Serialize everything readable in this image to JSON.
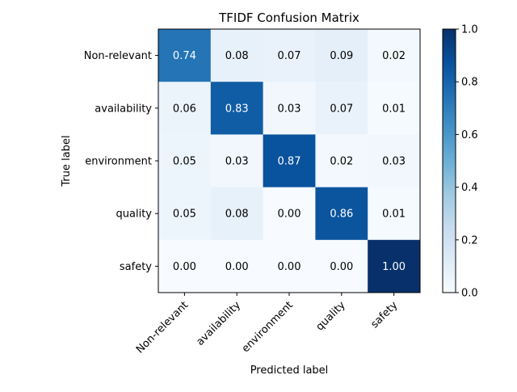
{
  "chart_data": {
    "type": "heatmap",
    "title": "TFIDF Confusion Matrix",
    "xlabel": "Predicted label",
    "ylabel": "True label",
    "x_categories": [
      "Non-relevant",
      "availability",
      "environment",
      "quality",
      "safety"
    ],
    "y_categories": [
      "Non-relevant",
      "availability",
      "environment",
      "quality",
      "safety"
    ],
    "values": [
      [
        0.74,
        0.08,
        0.07,
        0.09,
        0.02
      ],
      [
        0.06,
        0.83,
        0.03,
        0.07,
        0.01
      ],
      [
        0.05,
        0.03,
        0.87,
        0.02,
        0.03
      ],
      [
        0.05,
        0.08,
        0.0,
        0.86,
        0.01
      ],
      [
        0.0,
        0.0,
        0.0,
        0.0,
        1.0
      ]
    ],
    "cell_labels": [
      [
        "0.74",
        "0.08",
        "0.07",
        "0.09",
        "0.02"
      ],
      [
        "0.06",
        "0.83",
        "0.03",
        "0.07",
        "0.01"
      ],
      [
        "0.05",
        "0.03",
        "0.87",
        "0.02",
        "0.03"
      ],
      [
        "0.05",
        "0.08",
        "0.00",
        "0.86",
        "0.01"
      ],
      [
        "0.00",
        "0.00",
        "0.00",
        "0.00",
        "1.00"
      ]
    ],
    "colormap": "Blues",
    "vmin": 0.0,
    "vmax": 1.0,
    "colorbar": {
      "ticks": [
        0.0,
        0.2,
        0.4,
        0.6,
        0.8,
        1.0
      ],
      "tick_labels": [
        "0.0",
        "0.2",
        "0.4",
        "0.6",
        "0.8",
        "1.0"
      ]
    }
  }
}
